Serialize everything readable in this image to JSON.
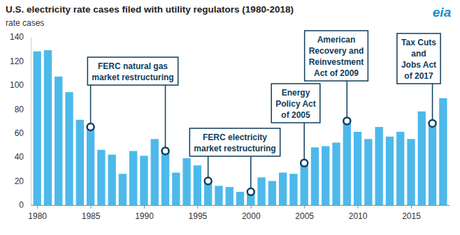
{
  "chart_data": {
    "type": "bar",
    "title": "U.S. electricity rate cases filed with utility regulators (1980-2018)",
    "y_label": "rate cases",
    "logo": "eia",
    "x": [
      1980,
      1981,
      1982,
      1983,
      1984,
      1985,
      1986,
      1987,
      1988,
      1989,
      1990,
      1991,
      1992,
      1993,
      1994,
      1995,
      1996,
      1997,
      1998,
      1999,
      2000,
      2001,
      2002,
      2003,
      2004,
      2005,
      2006,
      2007,
      2008,
      2009,
      2010,
      2011,
      2012,
      2013,
      2014,
      2015,
      2016,
      2017,
      2018
    ],
    "values": [
      128,
      129,
      107,
      94,
      71,
      65,
      46,
      42,
      26,
      45,
      41,
      55,
      45,
      27,
      39,
      33,
      20,
      16,
      15,
      11,
      11,
      23,
      20,
      27,
      26,
      35,
      48,
      49,
      52,
      70,
      61,
      55,
      65,
      57,
      61,
      55,
      78,
      68,
      89
    ],
    "color": "#4cb9ea",
    "xlim": [
      1979.4,
      2018.6
    ],
    "xticks": [
      1980,
      1985,
      1990,
      1995,
      2000,
      2005,
      2010,
      2015
    ],
    "ylim": [
      0,
      140
    ],
    "yticks": [
      0,
      20,
      40,
      60,
      80,
      100,
      120,
      140
    ],
    "grid": false,
    "annotations": [
      {
        "text": [
          "FERC natural gas",
          "market restructuring"
        ],
        "x": [
          1985,
          1992
        ]
      },
      {
        "text": [
          "FERC electricity",
          "market restructuring"
        ],
        "x": [
          1996,
          2000
        ]
      },
      {
        "text": [
          "Energy",
          "Policy Act",
          "of 2005"
        ],
        "x": [
          2005
        ]
      },
      {
        "text": [
          "American",
          "Recovery and",
          "Reinvestment",
          "Act of 2009"
        ],
        "x": [
          2009
        ]
      },
      {
        "text": [
          "Tax Cuts",
          "and",
          "Jobs Act",
          "of 2017"
        ],
        "x": [
          2017
        ]
      }
    ]
  }
}
